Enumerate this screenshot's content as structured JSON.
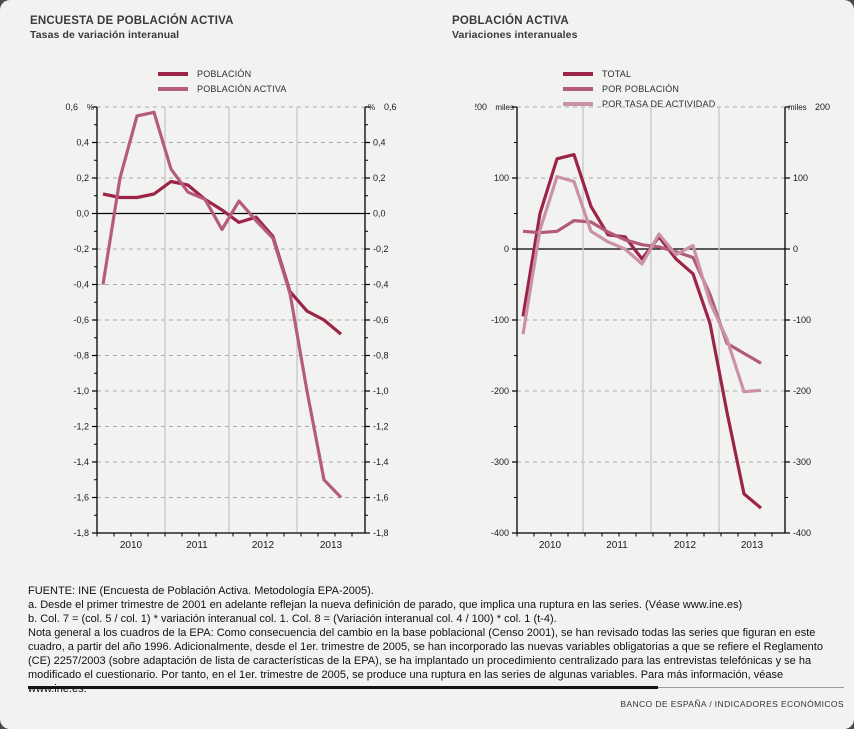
{
  "page": {
    "background": "#f2f2f0",
    "brand_footer": "BANCO DE ESPAÑA / INDICADORES ECONÓMICOS"
  },
  "footnotes": {
    "source": "FUENTE: INE (Encuesta de Población Activa. Metodología EPA-2005).",
    "note_a": "a. Desde el primer trimestre de 2001 en adelante reflejan la nueva definición de parado, que implica una ruptura en las series. (Véase www.ine.es)",
    "note_b": "b. Col. 7 = (col. 5 / col. 1) * variación interanual col. 1. Col. 8 = (Variación interanual col. 4 / 100) * col. 1 (t-4).",
    "note_general": "Nota general a los cuadros de la EPA: Como consecuencia del cambio en la base poblacional (Censo 2001), se han revisado todas las series que figuran en este cuadro, a partir del año 1996. Adicionalmente, desde el 1er. trimestre de 2005, se han incorporado las nuevas variables obligatorias a que se refiere el Reglamento (CE) 2257/2003 (sobre adaptación de lista de características de la EPA), se ha implantado un procedimiento centralizado para las entrevistas telefónicas y se ha modificado el cuestionario. Por tanto, en el 1er. trimestre de 2005, se produce una ruptura en las series de algunas variables. Para más información, véase www.ine.es."
  },
  "chart_data": [
    {
      "type": "line",
      "title": "ENCUESTA DE POBLACIÓN ACTIVA",
      "subtitle": "Tasas de variación interanual",
      "unit": "%",
      "x_quarters": [
        "2010Q1",
        "2010Q2",
        "2010Q3",
        "2010Q4",
        "2011Q1",
        "2011Q2",
        "2011Q3",
        "2011Q4",
        "2012Q1",
        "2012Q2",
        "2012Q3",
        "2012Q4",
        "2013Q1",
        "2013Q2",
        "2013Q3"
      ],
      "x_year_labels": [
        "2010",
        "2011",
        "2012",
        "2013"
      ],
      "ylim": [
        -1.8,
        0.6
      ],
      "ytick_step": 0.2,
      "ytick_labels": [
        "0,6",
        "0,4",
        "0,2",
        "0,0",
        "-0,2",
        "-0,4",
        "-0,6",
        "-0,8",
        "-1,0",
        "-1,2",
        "-1,4",
        "-1,6",
        "-1,8"
      ],
      "grid": "horizontal-dashed",
      "legend_position": "top",
      "series": [
        {
          "name": "POBLACIÓN",
          "color": "#9c2449",
          "values": [
            0.11,
            0.09,
            0.09,
            0.11,
            0.18,
            0.16,
            0.08,
            0.02,
            -0.05,
            -0.02,
            -0.13,
            -0.44,
            -0.55,
            -0.6,
            -0.68
          ]
        },
        {
          "name": "POBLACIÓN ACTIVA",
          "color": "#b55c7c",
          "values": [
            -0.4,
            0.2,
            0.55,
            0.57,
            0.25,
            0.12,
            0.08,
            -0.09,
            0.07,
            -0.04,
            -0.14,
            -0.45,
            -1.0,
            -1.5,
            -1.6
          ]
        }
      ]
    },
    {
      "type": "line",
      "title": "POBLACIÓN ACTIVA",
      "subtitle": "Variaciones interanuales",
      "unit": "miles",
      "x_quarters": [
        "2010Q1",
        "2010Q2",
        "2010Q3",
        "2010Q4",
        "2011Q1",
        "2011Q2",
        "2011Q3",
        "2011Q4",
        "2012Q1",
        "2012Q2",
        "2012Q3",
        "2012Q4",
        "2013Q1",
        "2013Q2",
        "2013Q3"
      ],
      "x_year_labels": [
        "2010",
        "2011",
        "2012",
        "2013"
      ],
      "ylim": [
        -400,
        200
      ],
      "ytick_step": 100,
      "ytick_labels": [
        "200",
        "100",
        "0",
        "-100",
        "-200",
        "-300",
        "-400"
      ],
      "grid": "horizontal-dashed",
      "legend_position": "top",
      "series": [
        {
          "name": "TOTAL",
          "color": "#9c2449",
          "values": [
            -95,
            50,
            127,
            133,
            60,
            20,
            17,
            -14,
            17,
            -14,
            -35,
            -105,
            -230,
            -345,
            -365
          ]
        },
        {
          "name": "POR POBLACIÓN",
          "color": "#b25a7a",
          "values": [
            25,
            23,
            25,
            40,
            38,
            24,
            13,
            6,
            3,
            -4,
            -12,
            -64,
            -133,
            -147,
            -161
          ]
        },
        {
          "name": "POR TASA DE ACTIVIDAD",
          "color": "#ca92a7",
          "values": [
            -120,
            27,
            102,
            95,
            25,
            10,
            0,
            -21,
            21,
            -8,
            5,
            -75,
            -127,
            -201,
            -199
          ]
        }
      ]
    }
  ]
}
